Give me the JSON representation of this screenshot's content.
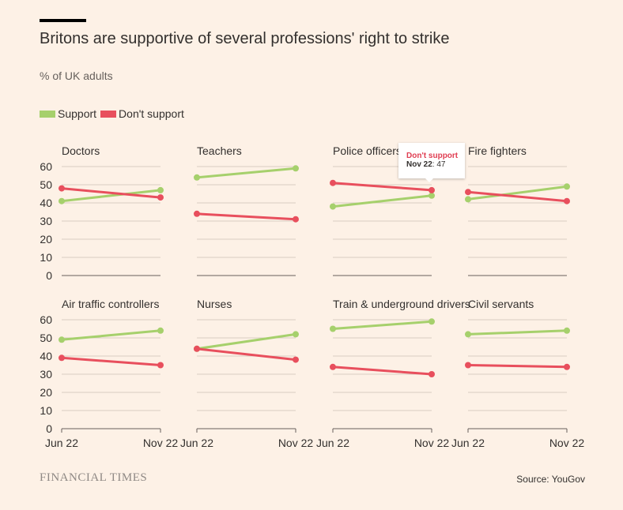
{
  "header": {
    "title": "Britons are supportive of several professions' right to strike",
    "subtitle": "% of UK adults"
  },
  "legend": [
    {
      "label": "Support",
      "color": "#a6d06c"
    },
    {
      "label": "Don't support",
      "color": "#e84f5d"
    }
  ],
  "tooltip": {
    "series": "Don't support",
    "date": "Nov 22",
    "value": "47"
  },
  "footer": {
    "brand": "FINANCIAL TIMES",
    "source": "Source: YouGov"
  },
  "chart_data": {
    "type": "line",
    "x": [
      "Jun 22",
      "Nov 22"
    ],
    "ylim": [
      0,
      60
    ],
    "yticks": [
      0,
      10,
      20,
      30,
      40,
      50,
      60
    ],
    "grid": true,
    "legend_position": "top-left",
    "panels": [
      {
        "title": "Doctors",
        "series": [
          {
            "name": "Support",
            "values": [
              41,
              47
            ]
          },
          {
            "name": "Don't support",
            "values": [
              48,
              43
            ]
          }
        ]
      },
      {
        "title": "Teachers",
        "series": [
          {
            "name": "Support",
            "values": [
              54,
              59
            ]
          },
          {
            "name": "Don't support",
            "values": [
              34,
              31
            ]
          }
        ]
      },
      {
        "title": "Police officers",
        "series": [
          {
            "name": "Support",
            "values": [
              38,
              44
            ]
          },
          {
            "name": "Don't support",
            "values": [
              51,
              47
            ]
          }
        ]
      },
      {
        "title": "Fire fighters",
        "series": [
          {
            "name": "Support",
            "values": [
              42,
              49
            ]
          },
          {
            "name": "Don't support",
            "values": [
              46,
              41
            ]
          }
        ]
      },
      {
        "title": "Air traffic controllers",
        "series": [
          {
            "name": "Support",
            "values": [
              49,
              54
            ]
          },
          {
            "name": "Don't support",
            "values": [
              39,
              35
            ]
          }
        ]
      },
      {
        "title": "Nurses",
        "series": [
          {
            "name": "Support",
            "values": [
              44,
              52
            ]
          },
          {
            "name": "Don't support",
            "values": [
              44,
              38
            ]
          }
        ]
      },
      {
        "title": "Train & underground drivers",
        "series": [
          {
            "name": "Support",
            "values": [
              55,
              59
            ]
          },
          {
            "name": "Don't support",
            "values": [
              34,
              30
            ]
          }
        ]
      },
      {
        "title": "Civil servants",
        "series": [
          {
            "name": "Support",
            "values": [
              52,
              54
            ]
          },
          {
            "name": "Don't support",
            "values": [
              35,
              34
            ]
          }
        ]
      }
    ]
  }
}
